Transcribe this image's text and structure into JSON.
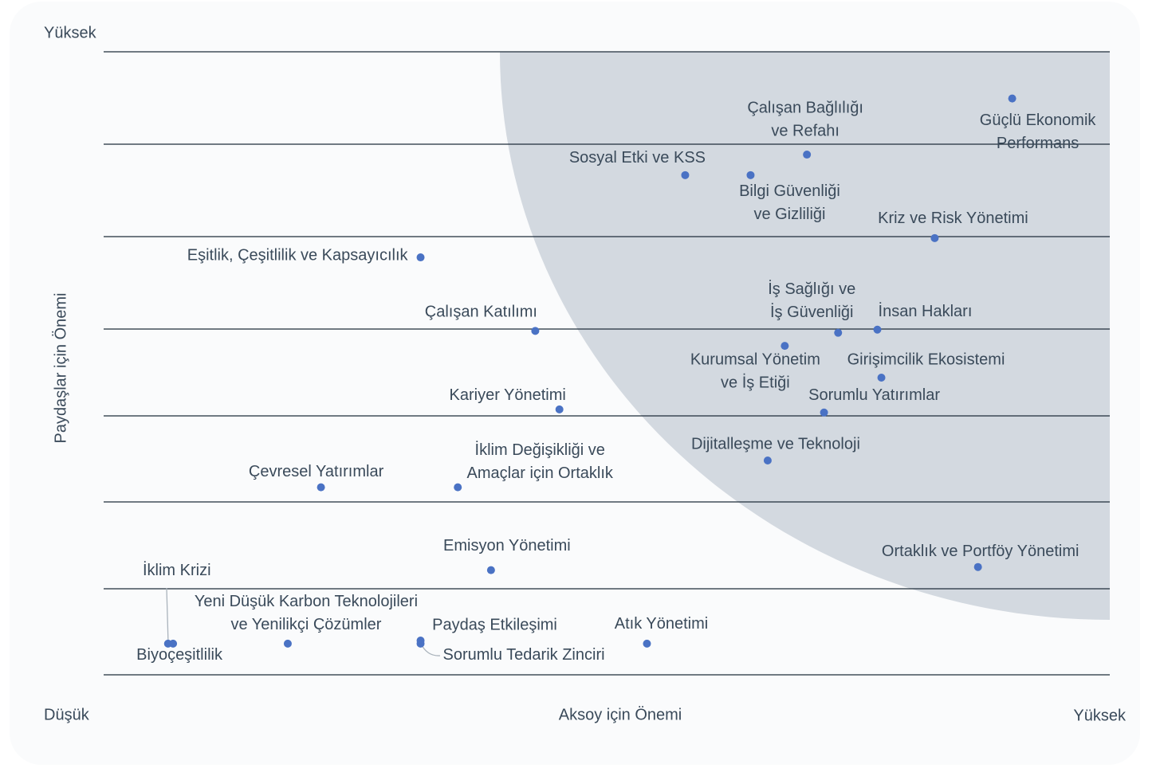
{
  "chart_data": {
    "type": "scatter",
    "x_label": "Aksoy için Önemi",
    "y_label": "Paydaşlar için Önemi",
    "x_low_label": "Düşük",
    "x_high_label": "Yüksek",
    "y_high_label": "Yüksek",
    "xlim": [
      0,
      100
    ],
    "ylim": [
      0,
      100
    ],
    "color": "#4a72c4",
    "zone_color": "#d3d9e0",
    "points": [
      {
        "label": [
          "Güçlü Ekonomik",
          "Performans"
        ],
        "x": 90.3,
        "y": 92.5
      },
      {
        "label": [
          "Çalışan Bağlılığı",
          "ve Refahı"
        ],
        "x": 69.9,
        "y": 83.5
      },
      {
        "label": [
          "Sosyal Etki ve KSS"
        ],
        "x": 57.8,
        "y": 80.2
      },
      {
        "label": [
          "Bilgi Güvenliği",
          "ve Gizliliği"
        ],
        "x": 64.3,
        "y": 80.2
      },
      {
        "label": [
          "Kriz ve Risk Yönetimi"
        ],
        "x": 82.6,
        "y": 70.1
      },
      {
        "label": [
          "Eşitlik, Çeşitlilik ve Kapsayıcılık"
        ],
        "x": 31.5,
        "y": 67.0
      },
      {
        "label": [
          "Çalışan Katılımı"
        ],
        "x": 42.9,
        "y": 55.2
      },
      {
        "label": [
          "İş Sağlığı ve",
          "İş Güvenliği"
        ],
        "x": 73.0,
        "y": 54.9
      },
      {
        "label": [
          "İnsan Hakları"
        ],
        "x": 76.9,
        "y": 55.4
      },
      {
        "label": [
          "Kurumsal Yönetim",
          "ve İş Etiği"
        ],
        "x": 67.7,
        "y": 52.8
      },
      {
        "label": [
          "Girişimcilik Ekosistemi"
        ],
        "x": 77.3,
        "y": 47.7
      },
      {
        "label": [
          "Sorumlu Yatırımlar"
        ],
        "x": 71.6,
        "y": 42.1
      },
      {
        "label": [
          "Kariyer Yönetimi"
        ],
        "x": 45.3,
        "y": 42.6
      },
      {
        "label": [
          "Dijitalleşme ve Teknoloji"
        ],
        "x": 66.0,
        "y": 34.4
      },
      {
        "label": [
          "Çevresel Yatırımlar"
        ],
        "x": 21.6,
        "y": 30.1
      },
      {
        "label": [
          "İklim Değişikliği ve",
          "Amaçlar için Ortaklık"
        ],
        "x": 35.2,
        "y": 30.1
      },
      {
        "label": [
          "Emisyon Yönetimi"
        ],
        "x": 38.5,
        "y": 16.8
      },
      {
        "label": [
          "Ortaklık ve Portföy Yönetimi"
        ],
        "x": 86.9,
        "y": 17.3
      },
      {
        "label": [
          "İklim Krizi"
        ],
        "x": 6.4,
        "y": 5.0
      },
      {
        "label": [
          "Biyoçeşitlilik"
        ],
        "x": 6.9,
        "y": 5.0
      },
      {
        "label": [
          "Yeni Düşük Karbon Teknolojileri",
          "ve Yenilikçi Çözümler"
        ],
        "x": 18.3,
        "y": 5.0
      },
      {
        "label": [
          "Paydaş Etkileşimi"
        ],
        "x": 31.5,
        "y": 5.5
      },
      {
        "label": [
          "Sorumlu Tedarik Zinciri"
        ],
        "x": 31.5,
        "y": 5.0
      },
      {
        "label": [
          "Atık Yönetimi"
        ],
        "x": 54.0,
        "y": 5.0
      }
    ]
  }
}
